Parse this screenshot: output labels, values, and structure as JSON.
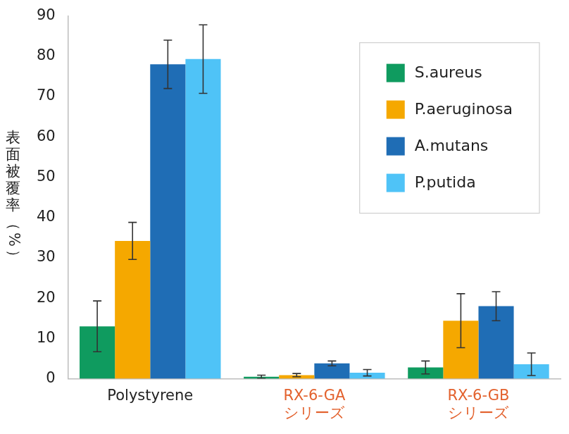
{
  "chart_data": {
    "type": "bar",
    "y_label": "表面被覆率（%）",
    "categories": [
      "Polystyrene",
      "RX-6-GA\nシリーズ",
      "RX-6-GB\nシリーズ"
    ],
    "series": [
      {
        "name": "S.aureus",
        "color": "#0f9b5f",
        "values": [
          13,
          0.5,
          2.8
        ],
        "errors": [
          6.3,
          0.4,
          1.6
        ]
      },
      {
        "name": "P.aeruginosa",
        "color": "#f5a800",
        "values": [
          34.2,
          0.9,
          14.4
        ],
        "errors": [
          4.6,
          0.4,
          6.7
        ]
      },
      {
        "name": "A.mutans",
        "color": "#1f6db5",
        "values": [
          78,
          3.8,
          18
        ],
        "errors": [
          6,
          0.6,
          3.6
        ]
      },
      {
        "name": "P.putida",
        "color": "#4fc3f7",
        "values": [
          79.3,
          1.5,
          3.6
        ],
        "errors": [
          8.5,
          0.8,
          2.8
        ]
      }
    ],
    "ylim": [
      0,
      90
    ],
    "yticks": [
      0,
      10,
      20,
      30,
      40,
      50,
      60,
      70,
      80,
      90
    ],
    "grid": false,
    "legend": "upper right"
  }
}
